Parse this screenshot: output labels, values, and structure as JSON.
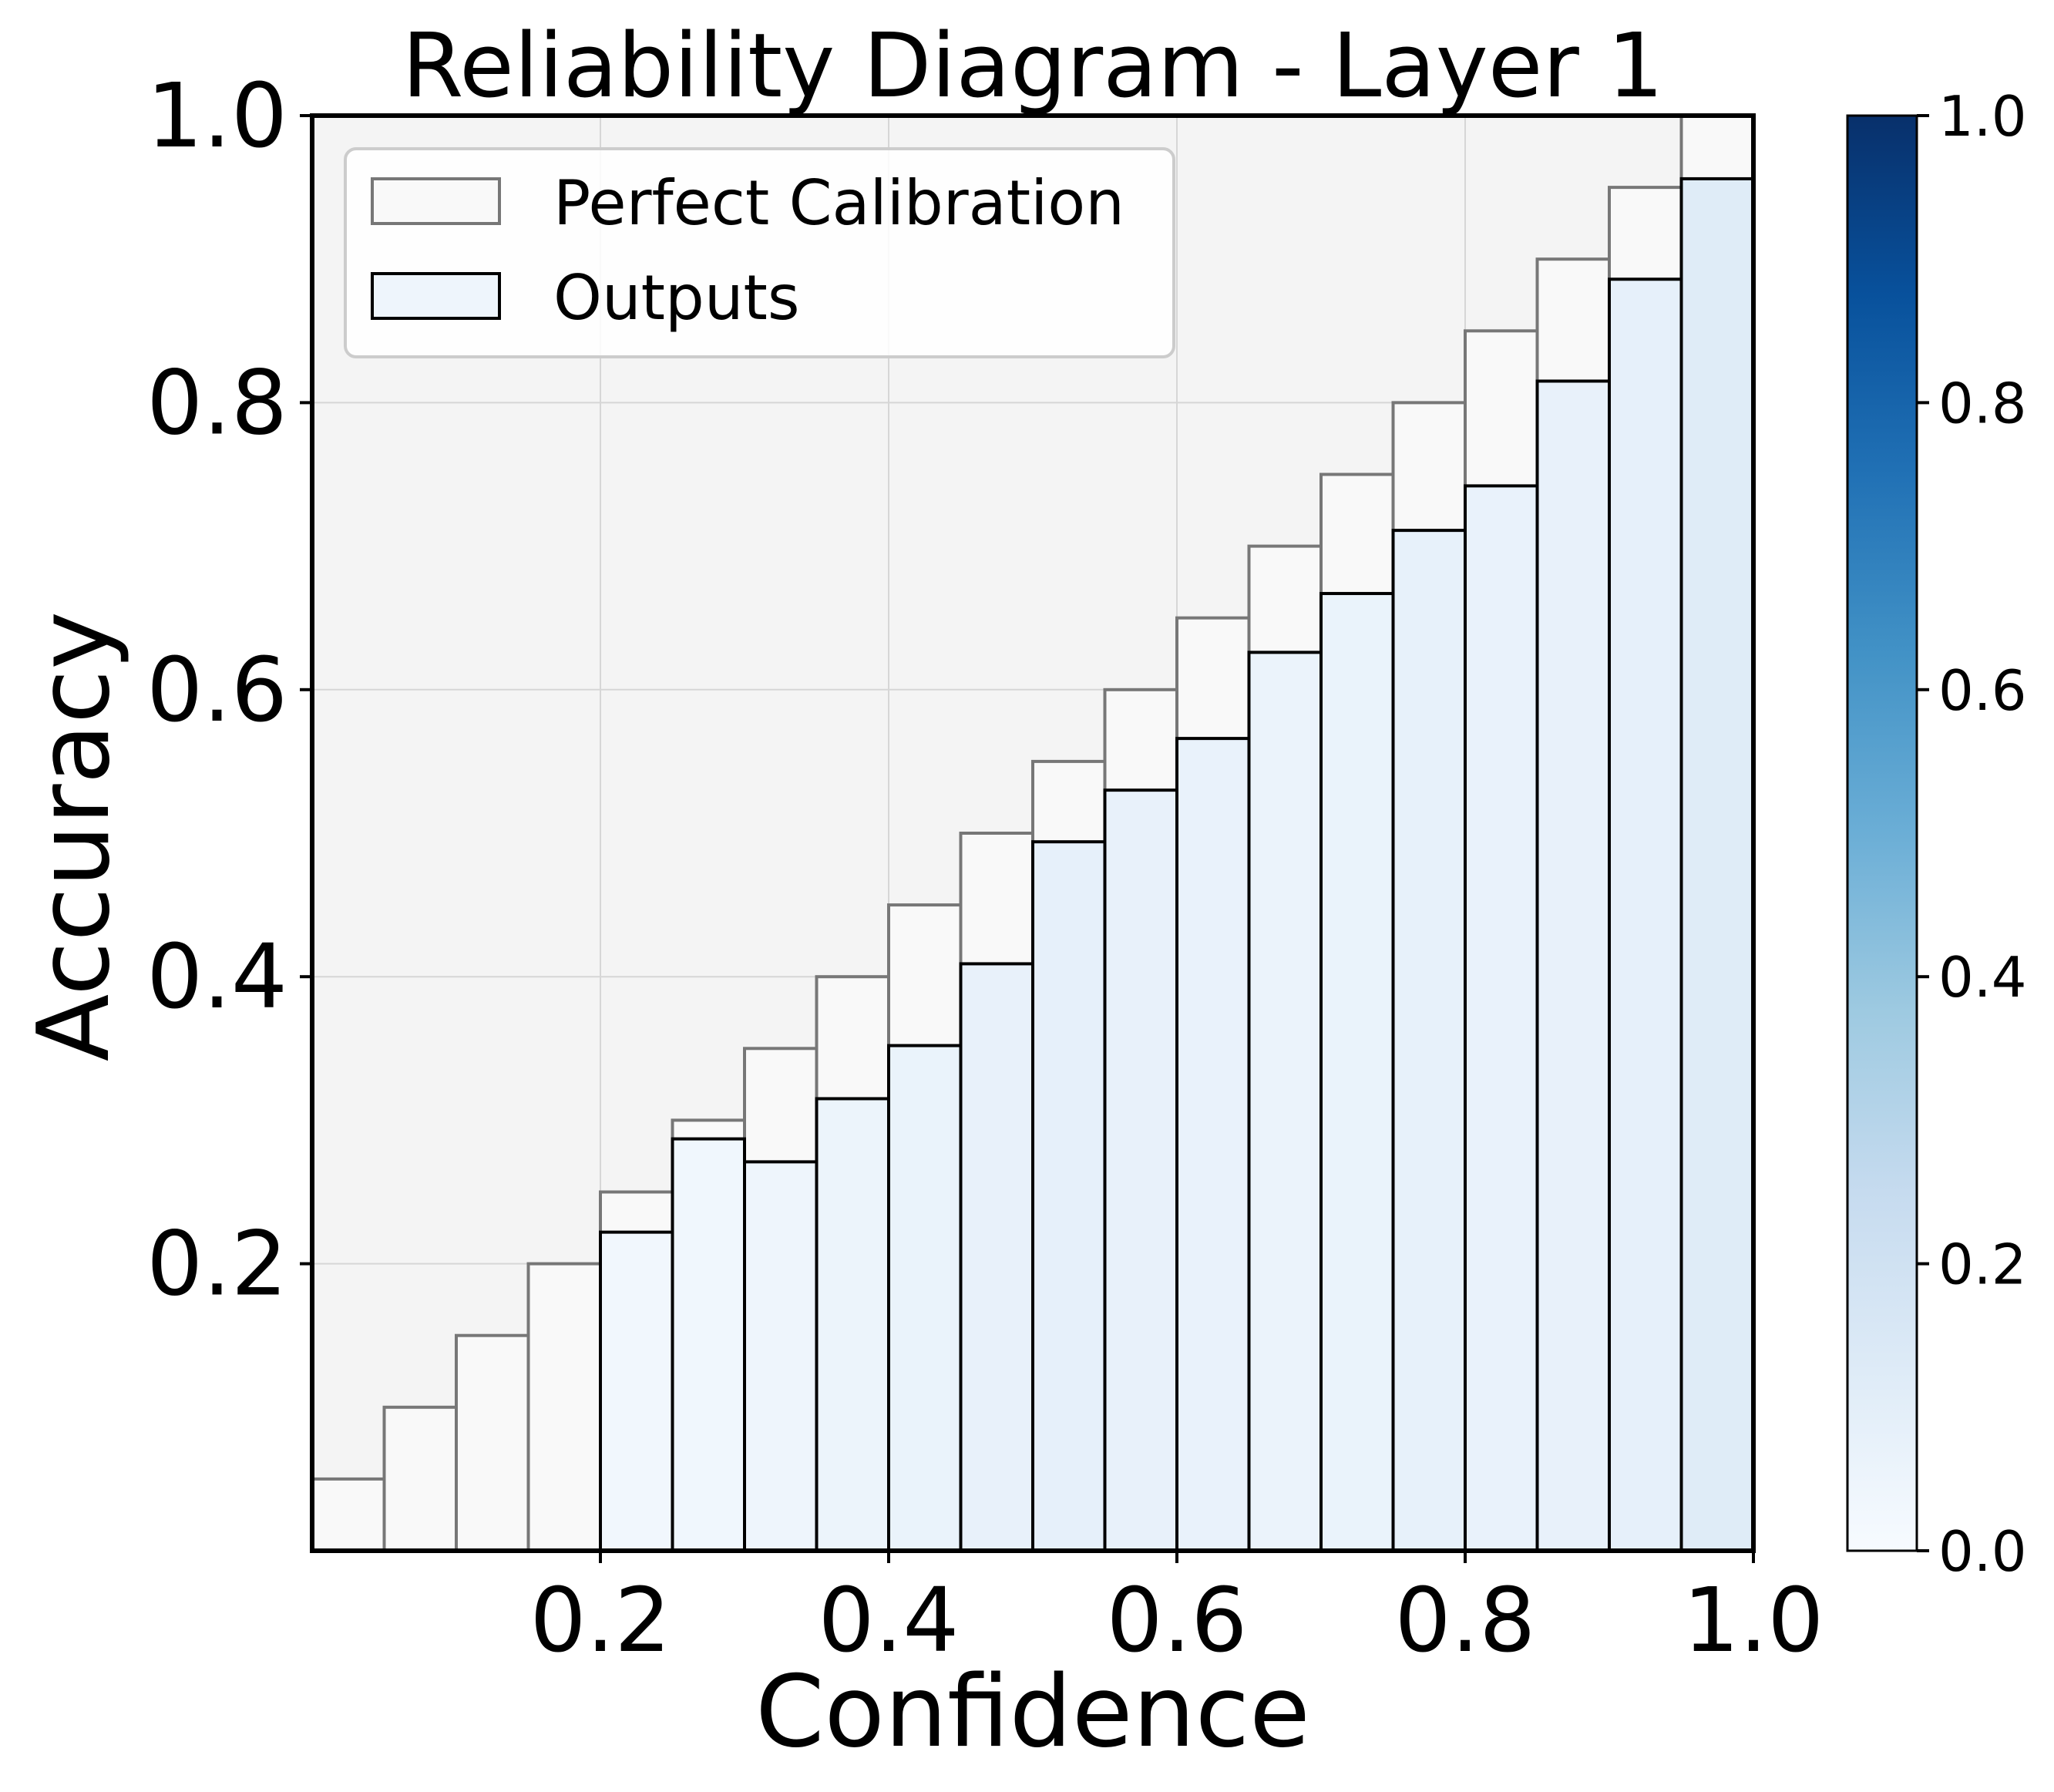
{
  "chart_data": {
    "type": "bar",
    "title": "Reliability Diagram - Layer 1",
    "xlabel": "Confidence",
    "ylabel": "Accuracy",
    "xlim": [
      0,
      1
    ],
    "ylim": [
      0,
      1
    ],
    "bin_width": 0.05,
    "x": [
      0.025,
      0.075,
      0.125,
      0.175,
      0.225,
      0.275,
      0.325,
      0.375,
      0.425,
      0.475,
      0.525,
      0.575,
      0.625,
      0.675,
      0.725,
      0.775,
      0.825,
      0.875,
      0.925,
      0.975
    ],
    "xticks": [
      "0.2",
      "0.4",
      "0.6",
      "0.8",
      "1.0"
    ],
    "yticks": [
      "0.2",
      "0.4",
      "0.6",
      "0.8",
      "1.0"
    ],
    "grid": true,
    "legend_position": "top-left",
    "series": [
      {
        "name": "Perfect Calibration",
        "values": [
          0.05,
          0.1,
          0.15,
          0.2,
          0.25,
          0.3,
          0.35,
          0.4,
          0.45,
          0.5,
          0.55,
          0.6,
          0.65,
          0.7,
          0.75,
          0.8,
          0.85,
          0.9,
          0.95,
          1.0
        ],
        "fill": "#f9f9f9",
        "edge": "#777777"
      },
      {
        "name": "Outputs",
        "values": [
          null,
          null,
          null,
          null,
          0.222,
          0.287,
          0.271,
          0.315,
          0.352,
          0.409,
          0.494,
          0.53,
          0.566,
          0.626,
          0.667,
          0.711,
          0.742,
          0.815,
          0.886,
          0.956
        ],
        "bin_fraction": [
          null,
          null,
          null,
          null,
          0.03,
          0.035,
          0.045,
          0.055,
          0.065,
          0.075,
          0.085,
          0.075,
          0.07,
          0.06,
          0.065,
          0.08,
          0.07,
          0.075,
          0.085,
          0.12
        ],
        "edge": "#000000"
      }
    ],
    "colorbar": {
      "colormap": "Blues",
      "range": [
        0,
        1
      ],
      "ticks": [
        "0.0",
        "0.2",
        "0.4",
        "0.6",
        "0.8",
        "1.0"
      ]
    },
    "colors": {
      "plot_background": "#f4f4f4",
      "grid": "#d6d6d6"
    }
  }
}
